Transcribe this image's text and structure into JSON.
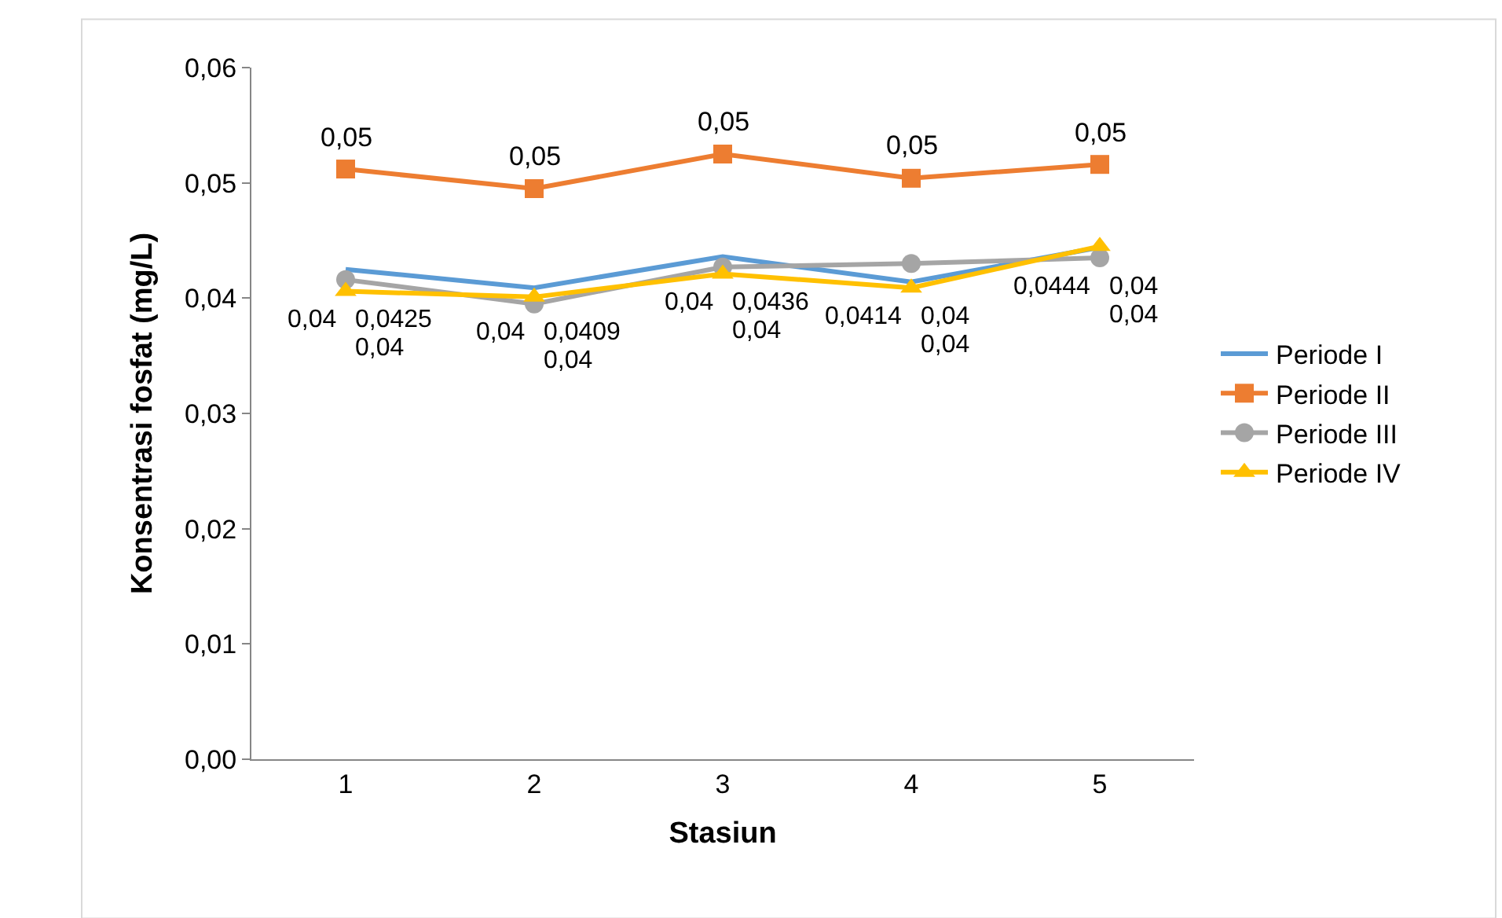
{
  "chart_data": {
    "type": "line",
    "xlabel": "Stasiun",
    "ylabel": "Konsentrasi fosfat (mg/L)",
    "categories": [
      "1",
      "2",
      "3",
      "4",
      "5"
    ],
    "series": [
      {
        "name": "Periode I",
        "color": "#5b9bd5",
        "marker": "none",
        "values": [
          0.0425,
          0.0409,
          0.0436,
          0.0414,
          0.0444
        ],
        "value_labels": [
          "0,0425",
          "0,0409",
          "0,0436",
          "0,0414",
          "0,0444"
        ]
      },
      {
        "name": "Periode II",
        "color": "#ed7d31",
        "marker": "square",
        "values": [
          0.0512,
          0.0495,
          0.0525,
          0.0504,
          0.0516
        ],
        "value_labels": [
          "0,05",
          "0,05",
          "0,05",
          "0,05",
          "0,05"
        ]
      },
      {
        "name": "Periode III",
        "color": "#a5a5a5",
        "marker": "circle",
        "values": [
          0.0416,
          0.0395,
          0.0427,
          0.043,
          0.0435
        ],
        "value_labels": [
          "0,04",
          "0,04",
          "0,04",
          "0,04",
          "0,04"
        ]
      },
      {
        "name": "Periode IV",
        "color": "#ffc000",
        "marker": "triangle",
        "values": [
          0.0406,
          0.0401,
          0.0421,
          0.0409,
          0.0445
        ],
        "value_labels": [
          "0,04",
          "0,04",
          "0,04",
          "0,04",
          "0,04"
        ]
      }
    ],
    "ylim": [
      0,
      0.06
    ],
    "yticks": [
      {
        "value": 0,
        "label": "0,00"
      },
      {
        "value": 0.01,
        "label": "0,01"
      },
      {
        "value": 0.02,
        "label": "0,02"
      },
      {
        "value": 0.03,
        "label": "0,03"
      },
      {
        "value": 0.04,
        "label": "0,04"
      },
      {
        "value": 0.05,
        "label": "0,05"
      },
      {
        "value": 0.06,
        "label": "0,06"
      }
    ],
    "grid": false,
    "legend": "right",
    "line_style": "solid"
  }
}
